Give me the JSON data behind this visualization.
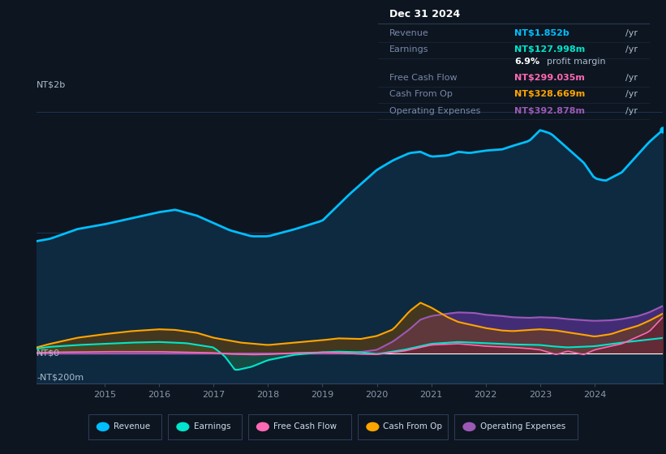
{
  "bg_color": "#0d1520",
  "plot_bg_color": "#0d1520",
  "revenue_color": "#00bfff",
  "earnings_color": "#00e5cc",
  "fcf_color": "#ff69b4",
  "cashfromop_color": "#ffa500",
  "opex_color": "#9b59b6",
  "tooltip_title": "Dec 31 2024",
  "tooltip_revenue_label": "Revenue",
  "tooltip_revenue_val": "NT$1.852b",
  "tooltip_earnings_label": "Earnings",
  "tooltip_earnings_val": "NT$127.998m",
  "tooltip_margin_pct": "6.9%",
  "tooltip_margin_text": "profit margin",
  "tooltip_fcf_label": "Free Cash Flow",
  "tooltip_fcf_val": "NT$299.035m",
  "tooltip_cashop_label": "Cash From Op",
  "tooltip_cashop_val": "NT$328.669m",
  "tooltip_opex_label": "Operating Expenses",
  "tooltip_opex_val": "NT$392.878m",
  "legend_items": [
    "Revenue",
    "Earnings",
    "Free Cash Flow",
    "Cash From Op",
    "Operating Expenses"
  ],
  "ytick_label_2b": "NT$2b",
  "ytick_label_0": "NT$0",
  "ytick_label_neg": "-NT$200m"
}
